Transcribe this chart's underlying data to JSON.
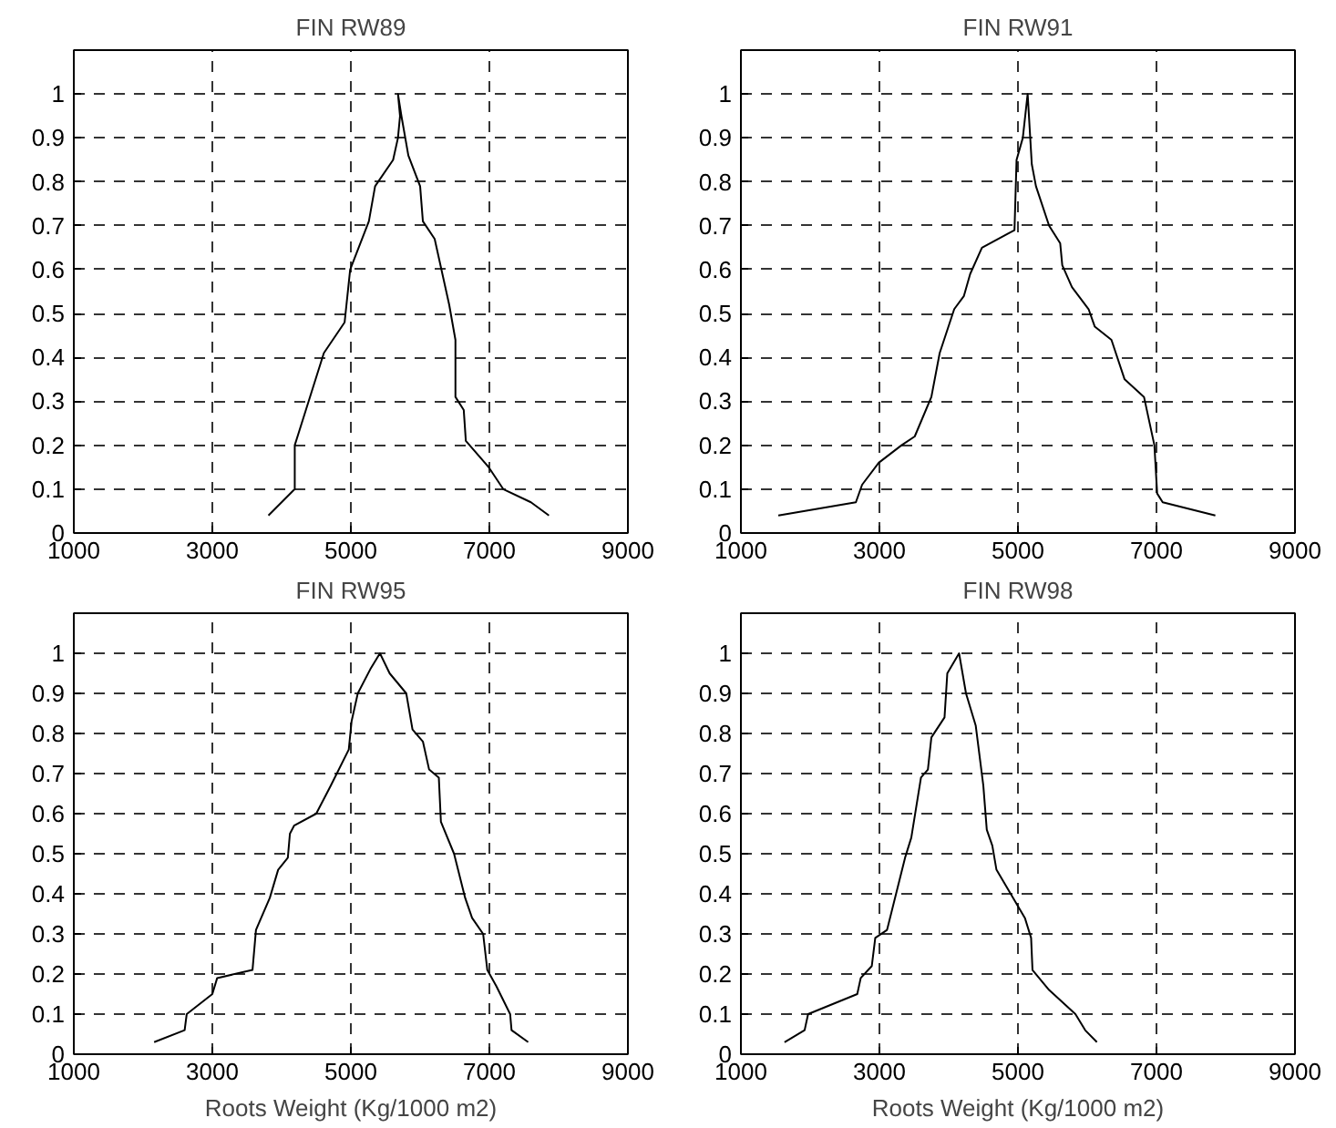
{
  "chart_data": [
    {
      "type": "line",
      "title": "FIN RW89",
      "xlim": [
        1000,
        9000
      ],
      "ylim": [
        0,
        1.1
      ],
      "xticks": [
        1000,
        3000,
        5000,
        7000,
        9000
      ],
      "yticks": [
        0,
        0.1,
        0.2,
        0.3,
        0.4,
        0.5,
        0.6,
        0.7,
        0.8,
        0.9,
        1
      ],
      "grid": true,
      "line_style": "solid",
      "series": [
        {
          "color": "#000000",
          "x": [
            3810,
            4190,
            4190,
            4250,
            4610,
            4910,
            4990,
            5260,
            5350,
            5610,
            5680,
            5710,
            5680,
            5730,
            5830,
            6000,
            6040,
            6210,
            6420,
            6510,
            6510,
            6630,
            6660,
            6990,
            7200,
            7600,
            7860
          ],
          "values": [
            0.04,
            0.1,
            0.2,
            0.23,
            0.41,
            0.48,
            0.6,
            0.71,
            0.79,
            0.85,
            0.9,
            0.95,
            1.0,
            0.95,
            0.86,
            0.79,
            0.71,
            0.67,
            0.52,
            0.44,
            0.31,
            0.28,
            0.21,
            0.15,
            0.1,
            0.07,
            0.04
          ]
        }
      ]
    },
    {
      "type": "line",
      "title": "FIN RW91",
      "xlim": [
        1000,
        9000
      ],
      "ylim": [
        0,
        1.1
      ],
      "xticks": [
        1000,
        3000,
        5000,
        7000,
        9000
      ],
      "yticks": [
        0,
        0.1,
        0.2,
        0.3,
        0.4,
        0.5,
        0.6,
        0.7,
        0.8,
        0.9,
        1
      ],
      "grid": true,
      "line_style": "solid",
      "series": [
        {
          "color": "#000000",
          "x": [
            1540,
            2660,
            2750,
            2990,
            3320,
            3510,
            3750,
            3870,
            4080,
            4220,
            4310,
            4480,
            4950,
            4980,
            5070,
            5140,
            5200,
            5260,
            5450,
            5610,
            5640,
            5780,
            6020,
            6110,
            6350,
            6540,
            6820,
            6970,
            7010,
            7090,
            7850
          ],
          "values": [
            0.04,
            0.07,
            0.11,
            0.16,
            0.2,
            0.22,
            0.31,
            0.41,
            0.51,
            0.54,
            0.59,
            0.65,
            0.69,
            0.85,
            0.9,
            1.0,
            0.84,
            0.79,
            0.7,
            0.66,
            0.61,
            0.56,
            0.51,
            0.47,
            0.44,
            0.35,
            0.31,
            0.2,
            0.09,
            0.07,
            0.04
          ]
        }
      ]
    },
    {
      "type": "line",
      "title": "FIN RW95",
      "xlabel": "Roots Weight (Kg/1000 m2)",
      "xlim": [
        1000,
        9000
      ],
      "ylim": [
        0,
        1.1
      ],
      "xticks": [
        1000,
        3000,
        5000,
        7000,
        9000
      ],
      "yticks": [
        0,
        0.1,
        0.2,
        0.3,
        0.4,
        0.5,
        0.6,
        0.7,
        0.8,
        0.9,
        1
      ],
      "grid": true,
      "line_style": "solid",
      "series": [
        {
          "color": "#000000",
          "x": [
            2160,
            2600,
            2630,
            3000,
            3070,
            3580,
            3630,
            3830,
            3950,
            4090,
            4120,
            4180,
            4500,
            4710,
            4970,
            5010,
            5100,
            5280,
            5420,
            5560,
            5800,
            5890,
            6040,
            6130,
            6270,
            6300,
            6490,
            6650,
            6750,
            6910,
            6970,
            7100,
            7300,
            7320,
            7560
          ],
          "values": [
            0.03,
            0.06,
            0.1,
            0.15,
            0.19,
            0.21,
            0.31,
            0.39,
            0.46,
            0.49,
            0.55,
            0.57,
            0.6,
            0.67,
            0.76,
            0.83,
            0.9,
            0.96,
            1.0,
            0.95,
            0.9,
            0.81,
            0.78,
            0.71,
            0.69,
            0.58,
            0.5,
            0.39,
            0.34,
            0.3,
            0.21,
            0.17,
            0.1,
            0.06,
            0.03
          ]
        }
      ]
    },
    {
      "type": "line",
      "title": "FIN RW98",
      "xlabel": "Roots Weight (Kg/1000 m2)",
      "xlim": [
        1000,
        9000
      ],
      "ylim": [
        0,
        1.1
      ],
      "xticks": [
        1000,
        3000,
        5000,
        7000,
        9000
      ],
      "yticks": [
        0,
        0.1,
        0.2,
        0.3,
        0.4,
        0.5,
        0.6,
        0.7,
        0.8,
        0.9,
        1
      ],
      "grid": true,
      "line_style": "solid",
      "series": [
        {
          "color": "#000000",
          "x": [
            1630,
            1920,
            1970,
            2680,
            2730,
            2890,
            2940,
            3110,
            3370,
            3460,
            3600,
            3700,
            3750,
            3940,
            3980,
            4150,
            4250,
            4390,
            4500,
            4550,
            4630,
            4690,
            4930,
            5100,
            5190,
            5210,
            5450,
            5830,
            5970,
            6140
          ],
          "values": [
            0.03,
            0.06,
            0.1,
            0.15,
            0.19,
            0.22,
            0.29,
            0.31,
            0.49,
            0.54,
            0.69,
            0.71,
            0.79,
            0.84,
            0.95,
            1.0,
            0.9,
            0.82,
            0.67,
            0.56,
            0.52,
            0.46,
            0.39,
            0.34,
            0.29,
            0.21,
            0.16,
            0.1,
            0.06,
            0.03
          ]
        }
      ]
    }
  ]
}
